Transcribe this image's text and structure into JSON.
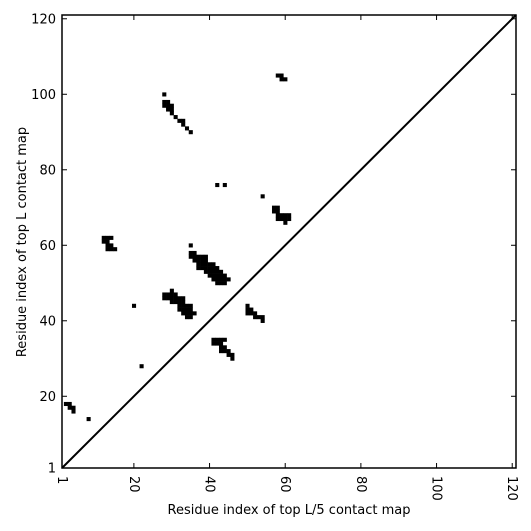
{
  "chart_data": {
    "type": "scatter",
    "title": "",
    "xlabel": "Residue index of top L/5 contact map",
    "ylabel": "Residue index of top L contact map",
    "xlim": [
      1,
      121
    ],
    "ylim": [
      1,
      121
    ],
    "xticks": [
      {
        "value": 1,
        "label": "1"
      },
      {
        "value": 20,
        "label": "20"
      },
      {
        "value": 40,
        "label": "40"
      },
      {
        "value": 60,
        "label": "60"
      },
      {
        "value": 80,
        "label": "80"
      },
      {
        "value": 100,
        "label": "100"
      },
      {
        "value": 120,
        "label": "120"
      }
    ],
    "yticks": [
      {
        "value": 1,
        "label": "1"
      },
      {
        "value": 20,
        "label": "20"
      },
      {
        "value": 40,
        "label": "40"
      },
      {
        "value": 60,
        "label": "60"
      },
      {
        "value": 80,
        "label": "80"
      },
      {
        "value": 100,
        "label": "100"
      },
      {
        "value": 120,
        "label": "120"
      }
    ],
    "diagonal": {
      "from": [
        1,
        1
      ],
      "to": [
        121,
        121
      ]
    },
    "grid": false,
    "lower_triangle_contacts": [
      [
        2,
        18
      ],
      [
        3,
        18
      ],
      [
        3,
        17
      ],
      [
        4,
        17
      ],
      [
        4,
        16
      ],
      [
        8,
        14
      ],
      [
        22,
        28
      ],
      [
        20,
        44
      ]
    ],
    "upper_triangle_contacts": [
      [
        12,
        62
      ],
      [
        13,
        62
      ],
      [
        14,
        62
      ],
      [
        12,
        61
      ],
      [
        13,
        61
      ],
      [
        13,
        60
      ],
      [
        14,
        60
      ],
      [
        13,
        59
      ],
      [
        14,
        59
      ],
      [
        15,
        59
      ],
      [
        28,
        100
      ],
      [
        28,
        98
      ],
      [
        29,
        98
      ],
      [
        28,
        97
      ],
      [
        29,
        97
      ],
      [
        30,
        97
      ],
      [
        29,
        96
      ],
      [
        30,
        96
      ],
      [
        30,
        95
      ],
      [
        31,
        94
      ],
      [
        32,
        93
      ],
      [
        33,
        93
      ],
      [
        33,
        92
      ],
      [
        34,
        91
      ],
      [
        35,
        90
      ],
      [
        42,
        76
      ],
      [
        44,
        76
      ],
      [
        54,
        73
      ],
      [
        57,
        70
      ],
      [
        58,
        70
      ],
      [
        57,
        69
      ],
      [
        58,
        69
      ],
      [
        58,
        68
      ],
      [
        59,
        68
      ],
      [
        60,
        68
      ],
      [
        61,
        68
      ],
      [
        58,
        67
      ],
      [
        59,
        67
      ],
      [
        60,
        67
      ],
      [
        61,
        67
      ],
      [
        60,
        66
      ],
      [
        58,
        105
      ],
      [
        59,
        105
      ],
      [
        59,
        104
      ],
      [
        60,
        104
      ],
      [
        35,
        60
      ],
      [
        35,
        58
      ],
      [
        36,
        58
      ],
      [
        35,
        57
      ],
      [
        36,
        57
      ],
      [
        37,
        57
      ],
      [
        38,
        57
      ],
      [
        39,
        57
      ],
      [
        36,
        56
      ],
      [
        37,
        56
      ],
      [
        38,
        56
      ],
      [
        39,
        56
      ],
      [
        37,
        55
      ],
      [
        38,
        55
      ],
      [
        39,
        55
      ],
      [
        40,
        55
      ],
      [
        41,
        55
      ],
      [
        37,
        54
      ],
      [
        38,
        54
      ],
      [
        39,
        54
      ],
      [
        40,
        54
      ],
      [
        41,
        54
      ],
      [
        42,
        54
      ],
      [
        39,
        53
      ],
      [
        40,
        53
      ],
      [
        41,
        53
      ],
      [
        42,
        53
      ],
      [
        43,
        53
      ],
      [
        40,
        52
      ],
      [
        41,
        52
      ],
      [
        42,
        52
      ],
      [
        43,
        52
      ],
      [
        44,
        52
      ],
      [
        41,
        51
      ],
      [
        42,
        51
      ],
      [
        43,
        51
      ],
      [
        44,
        51
      ],
      [
        45,
        51
      ],
      [
        42,
        50
      ],
      [
        43,
        50
      ],
      [
        44,
        50
      ],
      [
        30,
        48
      ],
      [
        28,
        47
      ],
      [
        29,
        47
      ],
      [
        30,
        47
      ],
      [
        31,
        47
      ],
      [
        28,
        46
      ],
      [
        29,
        46
      ],
      [
        30,
        46
      ],
      [
        31,
        46
      ],
      [
        32,
        46
      ],
      [
        33,
        46
      ],
      [
        30,
        45
      ],
      [
        31,
        45
      ],
      [
        32,
        45
      ],
      [
        33,
        45
      ],
      [
        32,
        44
      ],
      [
        33,
        44
      ],
      [
        34,
        44
      ],
      [
        35,
        44
      ],
      [
        32,
        43
      ],
      [
        33,
        43
      ],
      [
        34,
        43
      ],
      [
        35,
        43
      ],
      [
        33,
        42
      ],
      [
        34,
        42
      ],
      [
        35,
        42
      ],
      [
        36,
        42
      ],
      [
        34,
        41
      ],
      [
        35,
        41
      ],
      [
        50,
        44
      ],
      [
        50,
        43
      ],
      [
        51,
        43
      ],
      [
        50,
        42
      ],
      [
        51,
        42
      ],
      [
        52,
        42
      ],
      [
        52,
        41
      ],
      [
        53,
        41
      ],
      [
        54,
        41
      ],
      [
        54,
        40
      ],
      [
        44,
        35
      ],
      [
        41,
        35
      ],
      [
        42,
        35
      ],
      [
        43,
        35
      ],
      [
        41,
        34
      ],
      [
        42,
        34
      ],
      [
        43,
        34
      ],
      [
        43,
        33
      ],
      [
        44,
        33
      ],
      [
        43,
        32
      ],
      [
        44,
        32
      ],
      [
        45,
        32
      ],
      [
        45,
        31
      ],
      [
        46,
        31
      ],
      [
        46,
        30
      ]
    ]
  }
}
